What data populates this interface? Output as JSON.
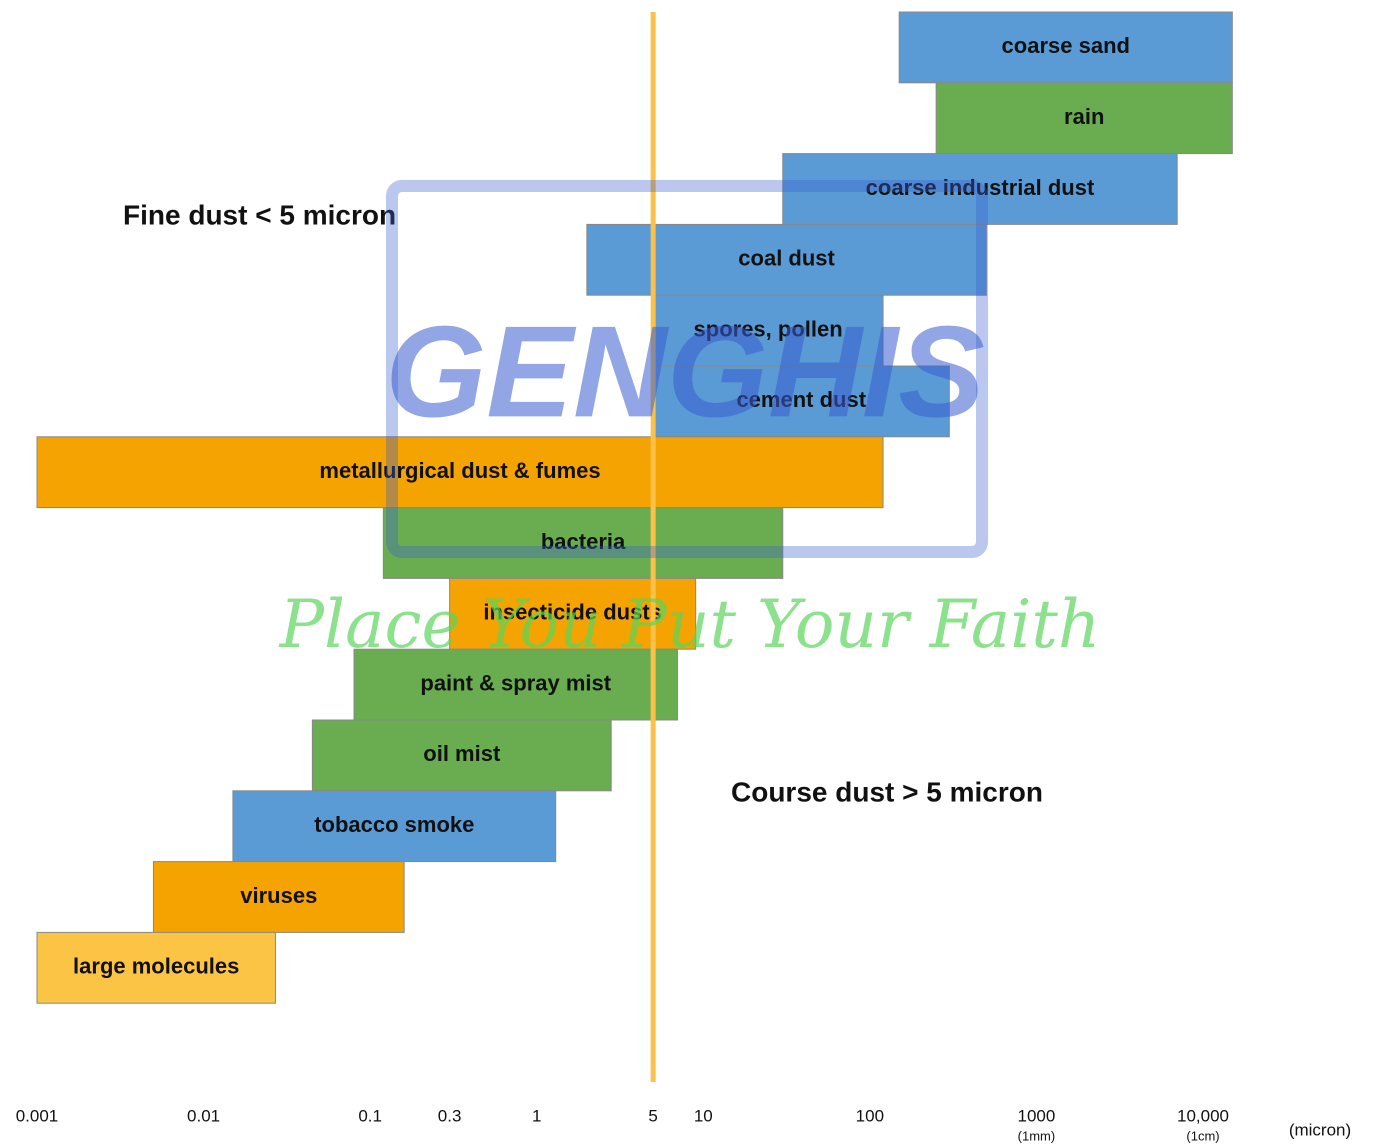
{
  "chart_data": {
    "type": "range-bar",
    "categories": [
      "coarse sand",
      "rain",
      "coarse industrial dust",
      "coal dust",
      "spores, pollen",
      "cement dust",
      "metallurgical dust & fumes",
      "bacteria",
      "insecticide dusts",
      "paint & spray mist",
      "oil mist",
      "tobacco smoke",
      "viruses",
      "large molecules"
    ],
    "ranges": [
      [
        150,
        15000
      ],
      [
        250,
        15000
      ],
      [
        30,
        7000
      ],
      [
        2,
        500
      ],
      [
        5,
        120
      ],
      [
        5,
        300
      ],
      [
        0.001,
        120
      ],
      [
        0.12,
        30
      ],
      [
        0.3,
        9
      ],
      [
        0.08,
        7
      ],
      [
        0.045,
        2.8
      ],
      [
        0.015,
        1.3
      ],
      [
        0.005,
        0.16
      ],
      [
        0.001,
        0.027
      ]
    ],
    "colors": [
      "#5b9bd5",
      "#6aad50",
      "#5b9bd5",
      "#5b9bd5",
      "#5b9bd5",
      "#5b9bd5",
      "#f5a300",
      "#6aad50",
      "#f5a300",
      "#6aad50",
      "#6aad50",
      "#5b9bd5",
      "#f5a300",
      "#fbc444"
    ],
    "xlim": [
      0.001,
      10000
    ],
    "log_x": true,
    "xticks": [
      0.001,
      0.01,
      0.1,
      0.3,
      1,
      5,
      10,
      100,
      1000,
      {
        "value": 10000,
        "label": "10,000"
      }
    ],
    "xlabel": "(micron)",
    "tick_notes": [
      {
        "text": "(1mm)",
        "x": 1000
      },
      {
        "text": "(1cm)",
        "x": 10000
      }
    ],
    "vline": {
      "x": 5,
      "color": "#fbc14a"
    },
    "annotations": [
      "Fine dust < 5 micron",
      "Course dust > 5 micron"
    ],
    "watermark": [
      "GENGHIS",
      "Place You Put Your Faith"
    ]
  }
}
